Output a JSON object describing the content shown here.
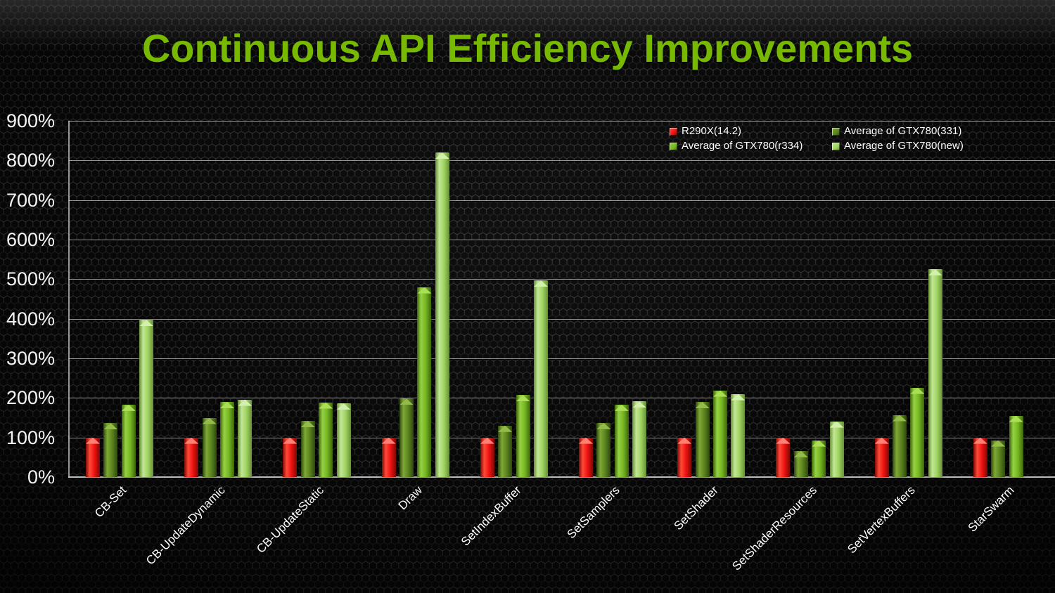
{
  "title": "Continuous API Efficiency Improvements",
  "colors": {
    "title_green": "#76b900",
    "background": "#0a0a0a",
    "grid": "#bebebe",
    "axis_text": "#ffffff"
  },
  "chart_data": {
    "type": "bar",
    "title": "Continuous API Efficiency Improvements",
    "xlabel": "",
    "ylabel": "",
    "ylim": [
      0,
      900
    ],
    "y_tick_step": 100,
    "y_tick_suffix": "%",
    "grid": true,
    "legend_position": "top-right",
    "categories": [
      "CB-Set",
      "CB-UpdateDynamic",
      "CB-UpdateStatic",
      "Draw",
      "SetIndexBuffer",
      "SetSamplers",
      "SetShader",
      "SetShaderResources",
      "SetVertexBuffers",
      "StarSwarm"
    ],
    "series": [
      {
        "name": "R290X(14.2)",
        "color": "#ee1111",
        "color_highlight": "#ff4a38",
        "color_edge": "#7e0a04",
        "color_cap": "#ff8176",
        "values": [
          100,
          100,
          100,
          100,
          100,
          100,
          100,
          100,
          100,
          100
        ]
      },
      {
        "name": "Average of GTX780(331)",
        "color": "#5b831e",
        "color_highlight": "#7fa936",
        "color_edge": "#2f4a0e",
        "color_cap": "#94bb4a",
        "values": [
          136,
          150,
          142,
          198,
          130,
          137,
          190,
          66,
          157,
          93
        ]
      },
      {
        "name": "Average of GTX780(r334)",
        "color": "#74b520",
        "color_highlight": "#97d243",
        "color_edge": "#3e660d",
        "color_cap": "#aade55",
        "values": [
          183,
          190,
          189,
          480,
          207,
          183,
          219,
          93,
          226,
          155
        ]
      },
      {
        "name": "Average of GTX780(new)",
        "color": "#9ed35f",
        "color_highlight": "#c3e795",
        "color_edge": "#688f38",
        "color_cap": "#d3efad",
        "values": [
          397,
          196,
          186,
          820,
          497,
          191,
          210,
          141,
          525,
          null
        ]
      }
    ]
  }
}
